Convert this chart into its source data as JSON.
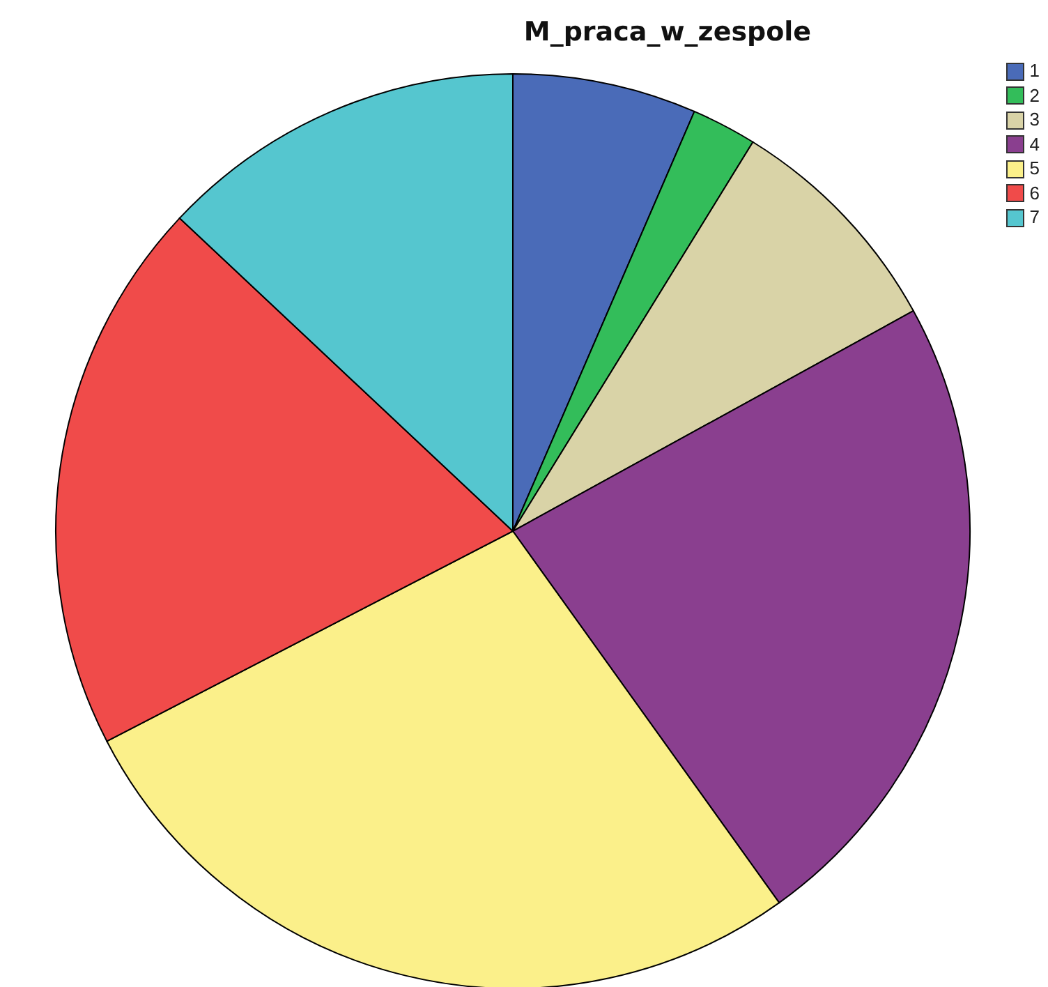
{
  "chart_data": {
    "type": "pie",
    "title": "M_praca_w_zespole",
    "categories": [
      "1",
      "2",
      "3",
      "4",
      "5",
      "6",
      "7"
    ],
    "values": [
      6.5,
      2.3,
      8.2,
      23.1,
      27.3,
      19.6,
      13.0
    ],
    "colors": [
      "#4a6bb8",
      "#33bd5a",
      "#d9d3a7",
      "#8a3f8f",
      "#fbf08a",
      "#f04b4a",
      "#55c6cf"
    ],
    "legend": "top right"
  }
}
